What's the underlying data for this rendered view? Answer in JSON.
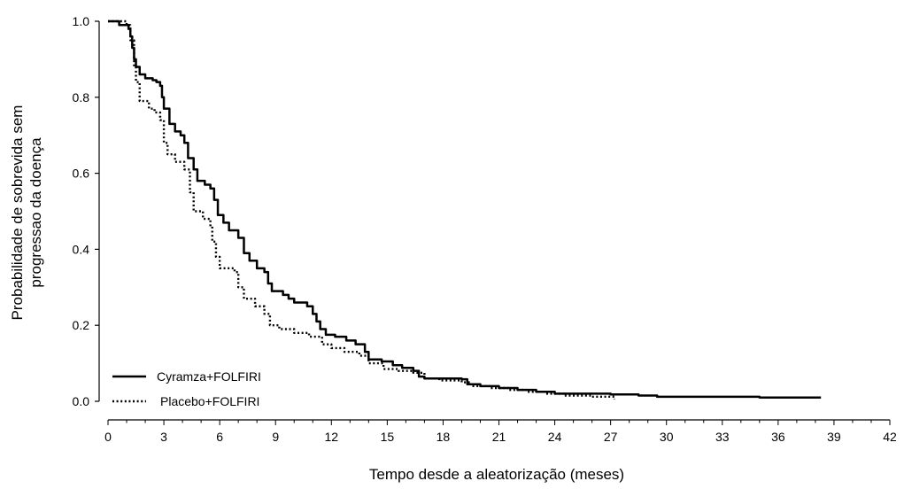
{
  "chart_data": {
    "type": "line",
    "title": "",
    "xlabel": "Tempo desde a aleatorização (meses)",
    "ylabel_lines": [
      "Probabilidade de sobrevida sem",
      "progressao da doença"
    ],
    "xlim": [
      0,
      42
    ],
    "ylim": [
      0,
      1
    ],
    "xticks": [
      0,
      3,
      6,
      9,
      12,
      15,
      18,
      21,
      24,
      27,
      30,
      33,
      36,
      39,
      42
    ],
    "yticks": [
      0.0,
      0.2,
      0.4,
      0.6,
      0.8,
      1.0
    ],
    "ytick_labels": [
      "0.0",
      "0.2",
      "0.4",
      "0.6",
      "0.8",
      "1.0"
    ],
    "grid": false,
    "legend_position": "bottom-left",
    "series": [
      {
        "name": "Cyramza+FOLFIRI",
        "style": "solid",
        "color": "#000000",
        "points": [
          [
            0,
            1.0
          ],
          [
            0.5,
            1.0
          ],
          [
            0.6,
            0.99
          ],
          [
            1.0,
            0.99
          ],
          [
            1.1,
            0.98
          ],
          [
            1.2,
            0.96
          ],
          [
            1.3,
            0.93
          ],
          [
            1.4,
            0.9
          ],
          [
            1.5,
            0.88
          ],
          [
            1.7,
            0.86
          ],
          [
            2.0,
            0.85
          ],
          [
            2.4,
            0.845
          ],
          [
            2.6,
            0.84
          ],
          [
            2.8,
            0.83
          ],
          [
            2.9,
            0.8
          ],
          [
            3.0,
            0.77
          ],
          [
            3.3,
            0.73
          ],
          [
            3.6,
            0.71
          ],
          [
            3.9,
            0.7
          ],
          [
            4.1,
            0.68
          ],
          [
            4.3,
            0.64
          ],
          [
            4.6,
            0.61
          ],
          [
            4.8,
            0.58
          ],
          [
            5.2,
            0.57
          ],
          [
            5.5,
            0.56
          ],
          [
            5.7,
            0.53
          ],
          [
            5.9,
            0.49
          ],
          [
            6.2,
            0.47
          ],
          [
            6.5,
            0.45
          ],
          [
            7.0,
            0.43
          ],
          [
            7.3,
            0.39
          ],
          [
            7.6,
            0.37
          ],
          [
            8.0,
            0.35
          ],
          [
            8.4,
            0.34
          ],
          [
            8.6,
            0.31
          ],
          [
            8.8,
            0.29
          ],
          [
            9.4,
            0.28
          ],
          [
            9.7,
            0.27
          ],
          [
            10.0,
            0.26
          ],
          [
            10.7,
            0.25
          ],
          [
            11.0,
            0.23
          ],
          [
            11.2,
            0.21
          ],
          [
            11.4,
            0.19
          ],
          [
            11.7,
            0.175
          ],
          [
            12.2,
            0.17
          ],
          [
            12.8,
            0.16
          ],
          [
            13.3,
            0.15
          ],
          [
            13.8,
            0.13
          ],
          [
            14.0,
            0.11
          ],
          [
            14.7,
            0.105
          ],
          [
            15.3,
            0.095
          ],
          [
            15.8,
            0.088
          ],
          [
            16.4,
            0.08
          ],
          [
            16.7,
            0.065
          ],
          [
            17.0,
            0.06
          ],
          [
            19.0,
            0.058
          ],
          [
            19.3,
            0.045
          ],
          [
            20.0,
            0.04
          ],
          [
            21.0,
            0.035
          ],
          [
            22.0,
            0.03
          ],
          [
            23.0,
            0.025
          ],
          [
            24.0,
            0.02
          ],
          [
            27.0,
            0.018
          ],
          [
            28.5,
            0.015
          ],
          [
            29.5,
            0.012
          ],
          [
            35.0,
            0.01
          ],
          [
            38.3,
            0.01
          ]
        ]
      },
      {
        "name": "Placebo+FOLFIRI",
        "style": "dotted",
        "color": "#000000",
        "points": [
          [
            0,
            1.0
          ],
          [
            0.5,
            1.0
          ],
          [
            1.0,
            0.99
          ],
          [
            1.2,
            0.95
          ],
          [
            1.4,
            0.88
          ],
          [
            1.5,
            0.84
          ],
          [
            1.7,
            0.79
          ],
          [
            2.2,
            0.77
          ],
          [
            2.5,
            0.76
          ],
          [
            2.8,
            0.74
          ],
          [
            3.0,
            0.68
          ],
          [
            3.2,
            0.65
          ],
          [
            3.6,
            0.63
          ],
          [
            4.1,
            0.61
          ],
          [
            4.4,
            0.55
          ],
          [
            4.6,
            0.5
          ],
          [
            5.1,
            0.48
          ],
          [
            5.5,
            0.46
          ],
          [
            5.6,
            0.42
          ],
          [
            5.8,
            0.38
          ],
          [
            6.0,
            0.35
          ],
          [
            6.8,
            0.34
          ],
          [
            7.0,
            0.3
          ],
          [
            7.3,
            0.27
          ],
          [
            7.9,
            0.25
          ],
          [
            8.4,
            0.23
          ],
          [
            8.7,
            0.2
          ],
          [
            9.2,
            0.19
          ],
          [
            10.0,
            0.18
          ],
          [
            10.8,
            0.17
          ],
          [
            11.5,
            0.15
          ],
          [
            12.0,
            0.14
          ],
          [
            12.7,
            0.13
          ],
          [
            13.5,
            0.12
          ],
          [
            14.0,
            0.1
          ],
          [
            14.8,
            0.085
          ],
          [
            15.6,
            0.08
          ],
          [
            16.4,
            0.075
          ],
          [
            17.0,
            0.06
          ],
          [
            17.8,
            0.055
          ],
          [
            19.0,
            0.05
          ],
          [
            19.5,
            0.04
          ],
          [
            20.5,
            0.035
          ],
          [
            21.5,
            0.03
          ],
          [
            22.5,
            0.025
          ],
          [
            23.5,
            0.02
          ],
          [
            24.5,
            0.015
          ],
          [
            26.0,
            0.012
          ],
          [
            27.2,
            0.005
          ]
        ]
      }
    ]
  }
}
